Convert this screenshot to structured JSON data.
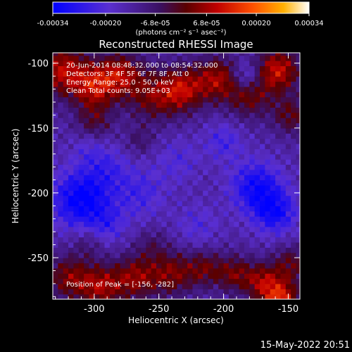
{
  "chart_data": {
    "type": "heatmap",
    "title": "Reconstructed RHESSI Image",
    "xlabel": "Heliocentric X (arcsec)",
    "ylabel": "Heliocentric Y (arcsec)",
    "xlim": [
      -332,
      -141
    ],
    "ylim": [
      -282,
      -92
    ],
    "x_ticks": [
      "-300",
      "-250",
      "-200",
      "-150"
    ],
    "x_tick_values": [
      -300,
      -250,
      -200,
      -150
    ],
    "y_ticks": [
      "-100",
      "-150",
      "-200",
      "-250"
    ],
    "y_tick_values": [
      -100,
      -150,
      -200,
      -250
    ],
    "colorbar": {
      "range": [
        -0.00034,
        0.00034
      ],
      "tick_labels": [
        "-0.00034",
        "-0.00020",
        "-6.8e-05",
        "6.8e-05",
        "0.00020",
        "0.00034"
      ],
      "tick_values": [
        -0.00034,
        -0.0002,
        -6.8e-05,
        6.8e-05,
        0.0002,
        0.00034
      ],
      "units_label": "(photons cm⁻² s⁻¹ asec⁻²)",
      "colormap": [
        "#0000ff",
        "#5a2fd0",
        "#3a1060",
        "#5a0000",
        "#c00000",
        "#ff5000",
        "#ffb000",
        "#ffffff"
      ]
    },
    "annotations": {
      "time": "20-Jun-2014 08:48:32.000 to 08:54:32.000",
      "detectors": "Detectors: 3F 4F 5F 6F 7F 8F, Att 0",
      "energy": "Energy Range: 25.0 - 50.0 keV",
      "method": "Clean     Total counts: 9.05E+03",
      "peak": "Position of Peak = [-156, -282]"
    },
    "peak_position": [
      -156,
      -282
    ],
    "grid": false
  },
  "timestamp": "15-May-2022 20:51"
}
